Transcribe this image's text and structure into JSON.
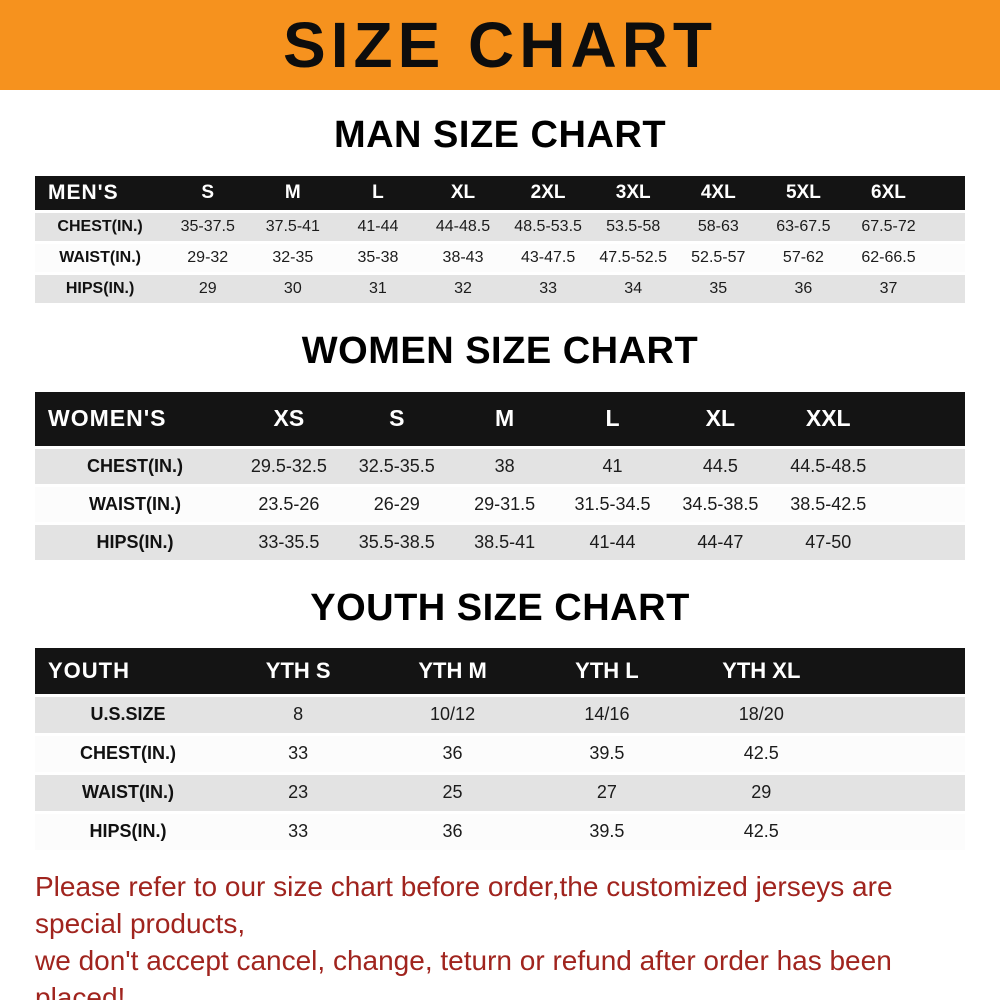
{
  "banner": {
    "title": "SIZE CHART"
  },
  "colors": {
    "banner_bg": "#f6921e",
    "header_bg": "#141414",
    "row_shade": "#e3e3e3",
    "row_light": "#fcfcfc",
    "note_color": "#a0241e"
  },
  "chart_data": [
    {
      "type": "table",
      "title": "MAN SIZE CHART",
      "header_label": "MEN'S",
      "columns": [
        "S",
        "M",
        "L",
        "XL",
        "2XL",
        "3XL",
        "4XL",
        "5XL",
        "6XL"
      ],
      "rows": [
        {
          "label": "CHEST(IN.)",
          "values": [
            "35-37.5",
            "37.5-41",
            "41-44",
            "44-48.5",
            "48.5-53.5",
            "53.5-58",
            "58-63",
            "63-67.5",
            "67.5-72"
          ]
        },
        {
          "label": "WAIST(IN.)",
          "values": [
            "29-32",
            "32-35",
            "35-38",
            "38-43",
            "43-47.5",
            "47.5-52.5",
            "52.5-57",
            "57-62",
            "62-66.5"
          ]
        },
        {
          "label": "HIPS(IN.)",
          "values": [
            "29",
            "30",
            "31",
            "32",
            "33",
            "34",
            "35",
            "36",
            "37"
          ]
        }
      ]
    },
    {
      "type": "table",
      "title": "WOMEN SIZE CHART",
      "header_label": "WOMEN'S",
      "columns": [
        "XS",
        "S",
        "M",
        "L",
        "XL",
        "XXL"
      ],
      "rows": [
        {
          "label": "CHEST(IN.)",
          "values": [
            "29.5-32.5",
            "32.5-35.5",
            "38",
            "41",
            "44.5",
            "44.5-48.5"
          ]
        },
        {
          "label": "WAIST(IN.)",
          "values": [
            "23.5-26",
            "26-29",
            "29-31.5",
            "31.5-34.5",
            "34.5-38.5",
            "38.5-42.5"
          ]
        },
        {
          "label": "HIPS(IN.)",
          "values": [
            "33-35.5",
            "35.5-38.5",
            "38.5-41",
            "41-44",
            "44-47",
            "47-50"
          ]
        }
      ]
    },
    {
      "type": "table",
      "title": "YOUTH SIZE CHART",
      "header_label": "YOUTH",
      "columns": [
        "YTH S",
        "YTH M",
        "YTH L",
        "YTH XL"
      ],
      "rows": [
        {
          "label": "U.S.SIZE",
          "values": [
            "8",
            "10/12",
            "14/16",
            "18/20"
          ]
        },
        {
          "label": "CHEST(IN.)",
          "values": [
            "33",
            "36",
            "39.5",
            "42.5"
          ]
        },
        {
          "label": "WAIST(IN.)",
          "values": [
            "23",
            "25",
            "27",
            "29"
          ]
        },
        {
          "label": "HIPS(IN.)",
          "values": [
            "33",
            "36",
            "39.5",
            "42.5"
          ]
        }
      ]
    }
  ],
  "note": {
    "line1": "Please refer to our size chart before order,the customized jerseys are special products,",
    "line2": "we don't accept cancel, change, teturn or refund after order has been placed!"
  }
}
